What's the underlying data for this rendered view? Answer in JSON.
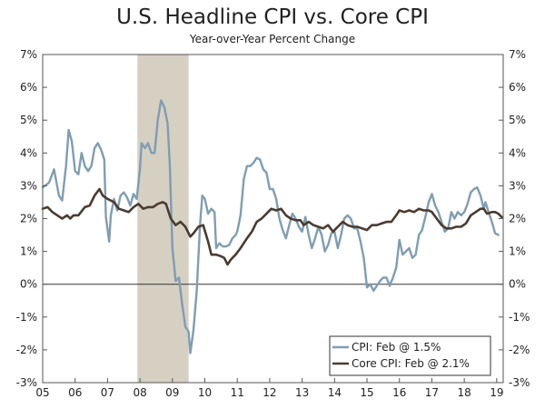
{
  "chart_data": {
    "type": "line",
    "title": "U.S. Headline CPI vs. Core CPI",
    "subtitle": "Year-over-Year Percent Change",
    "xlabel": "",
    "ylabel": "",
    "x_range": [
      2005.0,
      2019.2
    ],
    "ylim": [
      -3,
      7
    ],
    "x_ticks": [
      {
        "label": "05",
        "x": 2005.0
      },
      {
        "label": "06",
        "x": 2006.0
      },
      {
        "label": "07",
        "x": 2007.0
      },
      {
        "label": "08",
        "x": 2008.0
      },
      {
        "label": "09",
        "x": 2009.0
      },
      {
        "label": "10",
        "x": 2010.0
      },
      {
        "label": "11",
        "x": 2011.0
      },
      {
        "label": "12",
        "x": 2012.0
      },
      {
        "label": "13",
        "x": 2013.0
      },
      {
        "label": "14",
        "x": 2014.0
      },
      {
        "label": "15",
        "x": 2015.0
      },
      {
        "label": "16",
        "x": 2016.0
      },
      {
        "label": "17",
        "x": 2017.0
      },
      {
        "label": "18",
        "x": 2018.0
      },
      {
        "label": "19",
        "x": 2019.0
      }
    ],
    "y_ticks": [
      {
        "label": "7%",
        "value": 7
      },
      {
        "label": "6%",
        "value": 6
      },
      {
        "label": "5%",
        "value": 5
      },
      {
        "label": "4%",
        "value": 4
      },
      {
        "label": "3%",
        "value": 3
      },
      {
        "label": "2%",
        "value": 2
      },
      {
        "label": "1%",
        "value": 1
      },
      {
        "label": "0%",
        "value": 0
      },
      {
        "label": "-1%",
        "value": -1
      },
      {
        "label": "-2%",
        "value": -2
      },
      {
        "label": "-3%",
        "value": -3
      }
    ],
    "recession": {
      "x_start": 2007.92,
      "x_end": 2009.5,
      "color": "#d6d0c2"
    },
    "grid": false,
    "legend_position": "bottom-right",
    "series": [
      {
        "name": "CPI: Feb @ 1.5%",
        "color": "#7f9db2",
        "points": [
          [
            2005.0,
            2.95
          ],
          [
            2005.2,
            3.1
          ],
          [
            2005.35,
            3.5
          ],
          [
            2005.5,
            2.7
          ],
          [
            2005.6,
            2.55
          ],
          [
            2005.72,
            3.6
          ],
          [
            2005.8,
            4.7
          ],
          [
            2005.9,
            4.35
          ],
          [
            2006.0,
            3.45
          ],
          [
            2006.1,
            3.35
          ],
          [
            2006.2,
            4.0
          ],
          [
            2006.3,
            3.6
          ],
          [
            2006.4,
            3.45
          ],
          [
            2006.5,
            3.6
          ],
          [
            2006.6,
            4.15
          ],
          [
            2006.7,
            4.3
          ],
          [
            2006.8,
            4.1
          ],
          [
            2006.9,
            3.8
          ],
          [
            2006.95,
            2.05
          ],
          [
            2007.05,
            1.3
          ],
          [
            2007.1,
            2.1
          ],
          [
            2007.2,
            2.6
          ],
          [
            2007.3,
            2.25
          ],
          [
            2007.4,
            2.7
          ],
          [
            2007.5,
            2.8
          ],
          [
            2007.6,
            2.65
          ],
          [
            2007.7,
            2.4
          ],
          [
            2007.8,
            2.75
          ],
          [
            2007.9,
            2.6
          ],
          [
            2008.0,
            3.5
          ],
          [
            2008.05,
            4.3
          ],
          [
            2008.15,
            4.15
          ],
          [
            2008.25,
            4.3
          ],
          [
            2008.35,
            4.0
          ],
          [
            2008.45,
            4.0
          ],
          [
            2008.55,
            5.0
          ],
          [
            2008.65,
            5.6
          ],
          [
            2008.75,
            5.4
          ],
          [
            2008.85,
            4.9
          ],
          [
            2008.92,
            3.6
          ],
          [
            2009.0,
            1.1
          ],
          [
            2009.1,
            0.1
          ],
          [
            2009.2,
            0.2
          ],
          [
            2009.3,
            -0.6
          ],
          [
            2009.4,
            -1.3
          ],
          [
            2009.5,
            -1.45
          ],
          [
            2009.55,
            -2.1
          ],
          [
            2009.65,
            -1.4
          ],
          [
            2009.75,
            -0.2
          ],
          [
            2009.85,
            1.8
          ],
          [
            2009.92,
            2.7
          ],
          [
            2010.0,
            2.6
          ],
          [
            2010.1,
            2.15
          ],
          [
            2010.2,
            2.3
          ],
          [
            2010.3,
            2.2
          ],
          [
            2010.35,
            1.1
          ],
          [
            2010.45,
            1.25
          ],
          [
            2010.55,
            1.15
          ],
          [
            2010.65,
            1.15
          ],
          [
            2010.75,
            1.2
          ],
          [
            2010.85,
            1.4
          ],
          [
            2010.95,
            1.5
          ],
          [
            2011.0,
            1.6
          ],
          [
            2011.1,
            2.1
          ],
          [
            2011.2,
            3.2
          ],
          [
            2011.3,
            3.6
          ],
          [
            2011.4,
            3.6
          ],
          [
            2011.5,
            3.7
          ],
          [
            2011.6,
            3.85
          ],
          [
            2011.7,
            3.8
          ],
          [
            2011.8,
            3.5
          ],
          [
            2011.9,
            3.4
          ],
          [
            2012.0,
            2.9
          ],
          [
            2012.1,
            2.9
          ],
          [
            2012.2,
            2.6
          ],
          [
            2012.3,
            2.0
          ],
          [
            2012.4,
            1.65
          ],
          [
            2012.5,
            1.4
          ],
          [
            2012.6,
            1.8
          ],
          [
            2012.7,
            2.15
          ],
          [
            2012.8,
            2.0
          ],
          [
            2012.9,
            1.75
          ],
          [
            2013.0,
            1.6
          ],
          [
            2013.1,
            2.05
          ],
          [
            2013.2,
            1.5
          ],
          [
            2013.3,
            1.1
          ],
          [
            2013.4,
            1.4
          ],
          [
            2013.5,
            1.75
          ],
          [
            2013.6,
            1.5
          ],
          [
            2013.7,
            1.0
          ],
          [
            2013.8,
            1.2
          ],
          [
            2013.9,
            1.55
          ],
          [
            2014.0,
            1.6
          ],
          [
            2014.1,
            1.1
          ],
          [
            2014.2,
            1.5
          ],
          [
            2014.3,
            2.0
          ],
          [
            2014.4,
            2.1
          ],
          [
            2014.5,
            2.0
          ],
          [
            2014.6,
            1.7
          ],
          [
            2014.7,
            1.7
          ],
          [
            2014.8,
            1.3
          ],
          [
            2014.9,
            0.8
          ],
          [
            2015.0,
            -0.1
          ],
          [
            2015.1,
            0.0
          ],
          [
            2015.2,
            -0.2
          ],
          [
            2015.3,
            -0.05
          ],
          [
            2015.4,
            0.1
          ],
          [
            2015.5,
            0.2
          ],
          [
            2015.6,
            0.2
          ],
          [
            2015.7,
            -0.05
          ],
          [
            2015.8,
            0.2
          ],
          [
            2015.9,
            0.5
          ],
          [
            2016.0,
            1.35
          ],
          [
            2016.1,
            0.9
          ],
          [
            2016.2,
            1.0
          ],
          [
            2016.3,
            1.1
          ],
          [
            2016.4,
            0.8
          ],
          [
            2016.5,
            0.9
          ],
          [
            2016.6,
            1.5
          ],
          [
            2016.7,
            1.65
          ],
          [
            2016.8,
            2.05
          ],
          [
            2016.9,
            2.5
          ],
          [
            2017.0,
            2.75
          ],
          [
            2017.1,
            2.4
          ],
          [
            2017.2,
            2.2
          ],
          [
            2017.3,
            1.9
          ],
          [
            2017.4,
            1.6
          ],
          [
            2017.5,
            1.7
          ],
          [
            2017.6,
            2.2
          ],
          [
            2017.7,
            2.0
          ],
          [
            2017.8,
            2.2
          ],
          [
            2017.9,
            2.1
          ],
          [
            2018.0,
            2.2
          ],
          [
            2018.1,
            2.45
          ],
          [
            2018.2,
            2.8
          ],
          [
            2018.3,
            2.9
          ],
          [
            2018.4,
            2.95
          ],
          [
            2018.5,
            2.7
          ],
          [
            2018.6,
            2.3
          ],
          [
            2018.65,
            2.5
          ],
          [
            2018.75,
            2.2
          ],
          [
            2018.85,
            1.9
          ],
          [
            2018.95,
            1.55
          ],
          [
            2019.05,
            1.5
          ]
        ]
      },
      {
        "name": "Core CPI: Feb @ 2.1%",
        "color": "#4a3b30",
        "points": [
          [
            2005.0,
            2.3
          ],
          [
            2005.15,
            2.35
          ],
          [
            2005.3,
            2.2
          ],
          [
            2005.45,
            2.1
          ],
          [
            2005.6,
            2.0
          ],
          [
            2005.75,
            2.1
          ],
          [
            2005.85,
            2.0
          ],
          [
            2005.95,
            2.1
          ],
          [
            2006.1,
            2.1
          ],
          [
            2006.3,
            2.35
          ],
          [
            2006.45,
            2.4
          ],
          [
            2006.6,
            2.7
          ],
          [
            2006.75,
            2.9
          ],
          [
            2006.85,
            2.7
          ],
          [
            2007.0,
            2.6
          ],
          [
            2007.2,
            2.5
          ],
          [
            2007.35,
            2.3
          ],
          [
            2007.5,
            2.25
          ],
          [
            2007.65,
            2.2
          ],
          [
            2007.8,
            2.35
          ],
          [
            2007.95,
            2.45
          ],
          [
            2008.1,
            2.3
          ],
          [
            2008.25,
            2.35
          ],
          [
            2008.4,
            2.35
          ],
          [
            2008.55,
            2.45
          ],
          [
            2008.7,
            2.5
          ],
          [
            2008.8,
            2.45
          ],
          [
            2008.95,
            2.0
          ],
          [
            2009.1,
            1.8
          ],
          [
            2009.25,
            1.9
          ],
          [
            2009.4,
            1.75
          ],
          [
            2009.55,
            1.45
          ],
          [
            2009.65,
            1.55
          ],
          [
            2009.8,
            1.75
          ],
          [
            2009.95,
            1.8
          ],
          [
            2010.1,
            1.3
          ],
          [
            2010.2,
            0.9
          ],
          [
            2010.35,
            0.9
          ],
          [
            2010.5,
            0.85
          ],
          [
            2010.6,
            0.8
          ],
          [
            2010.7,
            0.6
          ],
          [
            2010.8,
            0.75
          ],
          [
            2010.95,
            0.9
          ],
          [
            2011.1,
            1.1
          ],
          [
            2011.3,
            1.4
          ],
          [
            2011.45,
            1.6
          ],
          [
            2011.6,
            1.9
          ],
          [
            2011.75,
            2.0
          ],
          [
            2011.9,
            2.15
          ],
          [
            2012.05,
            2.3
          ],
          [
            2012.2,
            2.25
          ],
          [
            2012.35,
            2.3
          ],
          [
            2012.5,
            2.1
          ],
          [
            2012.65,
            2.0
          ],
          [
            2012.8,
            1.95
          ],
          [
            2012.95,
            1.95
          ],
          [
            2013.05,
            1.8
          ],
          [
            2013.2,
            1.9
          ],
          [
            2013.35,
            1.8
          ],
          [
            2013.5,
            1.75
          ],
          [
            2013.65,
            1.7
          ],
          [
            2013.8,
            1.8
          ],
          [
            2013.95,
            1.6
          ],
          [
            2014.1,
            1.75
          ],
          [
            2014.25,
            1.9
          ],
          [
            2014.4,
            1.8
          ],
          [
            2014.55,
            1.75
          ],
          [
            2014.7,
            1.75
          ],
          [
            2014.85,
            1.7
          ],
          [
            2015.0,
            1.65
          ],
          [
            2015.15,
            1.8
          ],
          [
            2015.3,
            1.8
          ],
          [
            2015.45,
            1.85
          ],
          [
            2015.6,
            1.9
          ],
          [
            2015.75,
            1.9
          ],
          [
            2015.9,
            2.1
          ],
          [
            2016.0,
            2.25
          ],
          [
            2016.15,
            2.2
          ],
          [
            2016.3,
            2.25
          ],
          [
            2016.45,
            2.2
          ],
          [
            2016.6,
            2.3
          ],
          [
            2016.75,
            2.25
          ],
          [
            2016.9,
            2.25
          ],
          [
            2017.0,
            2.2
          ],
          [
            2017.15,
            2.0
          ],
          [
            2017.3,
            1.8
          ],
          [
            2017.45,
            1.7
          ],
          [
            2017.6,
            1.7
          ],
          [
            2017.75,
            1.75
          ],
          [
            2017.9,
            1.75
          ],
          [
            2018.05,
            1.85
          ],
          [
            2018.2,
            2.1
          ],
          [
            2018.35,
            2.2
          ],
          [
            2018.5,
            2.3
          ],
          [
            2018.6,
            2.3
          ],
          [
            2018.7,
            2.15
          ],
          [
            2018.85,
            2.2
          ],
          [
            2018.95,
            2.2
          ],
          [
            2019.05,
            2.15
          ],
          [
            2019.15,
            2.05
          ]
        ]
      }
    ]
  }
}
